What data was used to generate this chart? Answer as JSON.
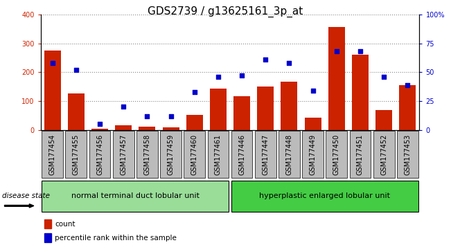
{
  "title": "GDS2739 / g13625161_3p_at",
  "categories": [
    "GSM177454",
    "GSM177455",
    "GSM177456",
    "GSM177457",
    "GSM177458",
    "GSM177459",
    "GSM177460",
    "GSM177461",
    "GSM177446",
    "GSM177447",
    "GSM177448",
    "GSM177449",
    "GSM177450",
    "GSM177451",
    "GSM177452",
    "GSM177453"
  ],
  "counts": [
    275,
    127,
    3,
    15,
    10,
    8,
    52,
    143,
    117,
    150,
    168,
    42,
    357,
    262,
    68,
    155
  ],
  "percentiles": [
    58,
    52,
    5,
    20,
    12,
    12,
    33,
    46,
    47,
    61,
    58,
    34,
    68,
    68,
    46,
    39
  ],
  "group1_label": "normal terminal duct lobular unit",
  "group2_label": "hyperplastic enlarged lobular unit",
  "disease_state_label": "disease state",
  "bar_color": "#cc2200",
  "dot_color": "#0000cc",
  "count_legend": "count",
  "percentile_legend": "percentile rank within the sample",
  "ylim_left": [
    0,
    400
  ],
  "ylim_right": [
    0,
    100
  ],
  "yticks_left": [
    0,
    100,
    200,
    300,
    400
  ],
  "yticks_right": [
    0,
    25,
    50,
    75,
    100
  ],
  "ytick_labels_right": [
    "0",
    "25",
    "50",
    "75",
    "100%"
  ],
  "grid_color": "#888888",
  "group1_color": "#99dd99",
  "group2_color": "#44cc44",
  "tick_bg_color": "#bbbbbb",
  "title_fontsize": 11,
  "tick_fontsize": 7,
  "label_fontsize": 8
}
